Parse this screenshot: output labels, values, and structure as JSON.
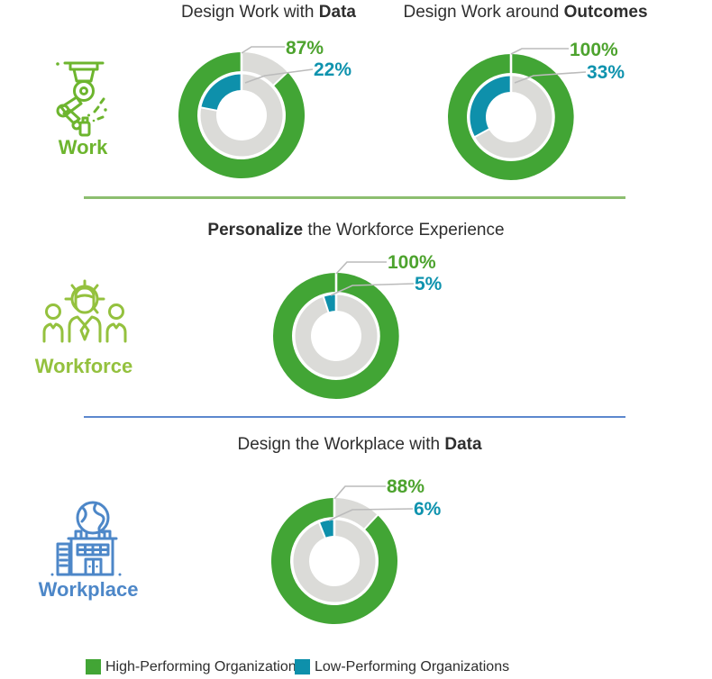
{
  "colors": {
    "green": "#42A535",
    "teal": "#0E90AB",
    "track": "#DBDBD8",
    "leader": "#BBBBBB",
    "green-text": "#4DA32E",
    "teal-text": "#0F93AE",
    "text": "#2E2E2E",
    "work-green": "#6DB52E",
    "workforce-green": "#94C13E",
    "workplace-blue": "#4D87C8",
    "divider-green": "#8CBE70",
    "divider-blue": "#5C87CE"
  },
  "sections": [
    {
      "label": "Work",
      "icon": "robot-arm-icon"
    },
    {
      "label": "Workforce",
      "icon": "team-gear-icon"
    },
    {
      "label": "Workplace",
      "icon": "building-globe-icon"
    }
  ],
  "chart_data": [
    {
      "type": "donut",
      "section": "Work",
      "title": {
        "pre": "Design Work with ",
        "bold": "Data",
        "post": ""
      },
      "series": [
        {
          "name": "High-Performing Organizations",
          "value": 87,
          "label": "87%"
        },
        {
          "name": "Low-Performing Organizations",
          "value": 22,
          "label": "22%"
        }
      ]
    },
    {
      "type": "donut",
      "section": "Work",
      "title": {
        "pre": "Design Work around ",
        "bold": "Outcomes",
        "post": ""
      },
      "series": [
        {
          "name": "High-Performing Organizations",
          "value": 100,
          "label": "100%"
        },
        {
          "name": "Low-Performing Organizations",
          "value": 33,
          "label": "33%"
        }
      ]
    },
    {
      "type": "donut",
      "section": "Workforce",
      "title": {
        "pre": "",
        "bold": "Personalize",
        "post": " the Workforce Experience"
      },
      "series": [
        {
          "name": "High-Performing Organizations",
          "value": 100,
          "label": "100%"
        },
        {
          "name": "Low-Performing Organizations",
          "value": 5,
          "label": "5%"
        }
      ]
    },
    {
      "type": "donut",
      "section": "Workplace",
      "title": {
        "pre": "Design the Workplace with ",
        "bold": "Data",
        "post": ""
      },
      "series": [
        {
          "name": "High-Performing Organizations",
          "value": 88,
          "label": "88%"
        },
        {
          "name": "Low-Performing Organizations",
          "value": 6,
          "label": "6%"
        }
      ]
    }
  ],
  "legend": {
    "items": [
      {
        "label": "High-Performing Organizations",
        "color": "#42A535"
      },
      {
        "label": "Low-Performing Organizations",
        "color": "#0E90AB"
      }
    ]
  }
}
